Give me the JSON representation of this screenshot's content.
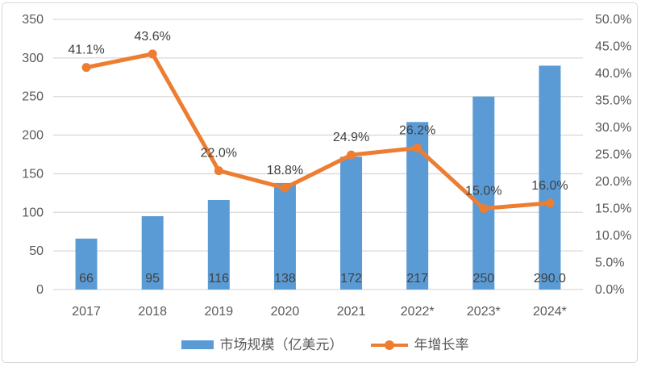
{
  "chart_data": {
    "type": "combo-bar-line",
    "categories": [
      "2017",
      "2018",
      "2019",
      "2020",
      "2021",
      "2022*",
      "2023*",
      "2024*"
    ],
    "series": [
      {
        "name": "市场规模（亿美元）",
        "type": "bar",
        "axis": "left",
        "values": [
          66,
          95,
          116,
          138,
          172,
          217,
          250,
          290
        ],
        "labels": [
          "66",
          "95",
          "116",
          "138",
          "172",
          "217",
          "250",
          "290.0"
        ],
        "color": "#5B9BD5"
      },
      {
        "name": "年增长率",
        "type": "line",
        "axis": "right",
        "values": [
          41.1,
          43.6,
          22.0,
          18.8,
          24.9,
          26.2,
          15.0,
          16.0
        ],
        "labels": [
          "41.1%",
          "43.6%",
          "22.0%",
          "18.8%",
          "24.9%",
          "26.2%",
          "15.0%",
          "16.0%"
        ],
        "color": "#ED7D31"
      }
    ],
    "left_axis": {
      "min": 0,
      "max": 350,
      "step": 50,
      "tick_labels": [
        "0",
        "50",
        "100",
        "150",
        "200",
        "250",
        "300",
        "350"
      ]
    },
    "right_axis": {
      "min": 0,
      "max": 50,
      "step": 5,
      "tick_labels": [
        "0.0%",
        "5.0%",
        "10.0%",
        "15.0%",
        "20.0%",
        "25.0%",
        "30.0%",
        "35.0%",
        "40.0%",
        "45.0%",
        "50.0%"
      ]
    },
    "grid": true,
    "legend_position": "bottom",
    "title": "",
    "xlabel": "",
    "ylabel": ""
  },
  "colors": {
    "bar": "#5B9BD5",
    "line": "#ED7D31",
    "grid": "#D9D9D9",
    "axis_text": "#595959",
    "data_label": "#404040",
    "frame_border": "#D7D7D7",
    "background": "#FFFFFF"
  }
}
